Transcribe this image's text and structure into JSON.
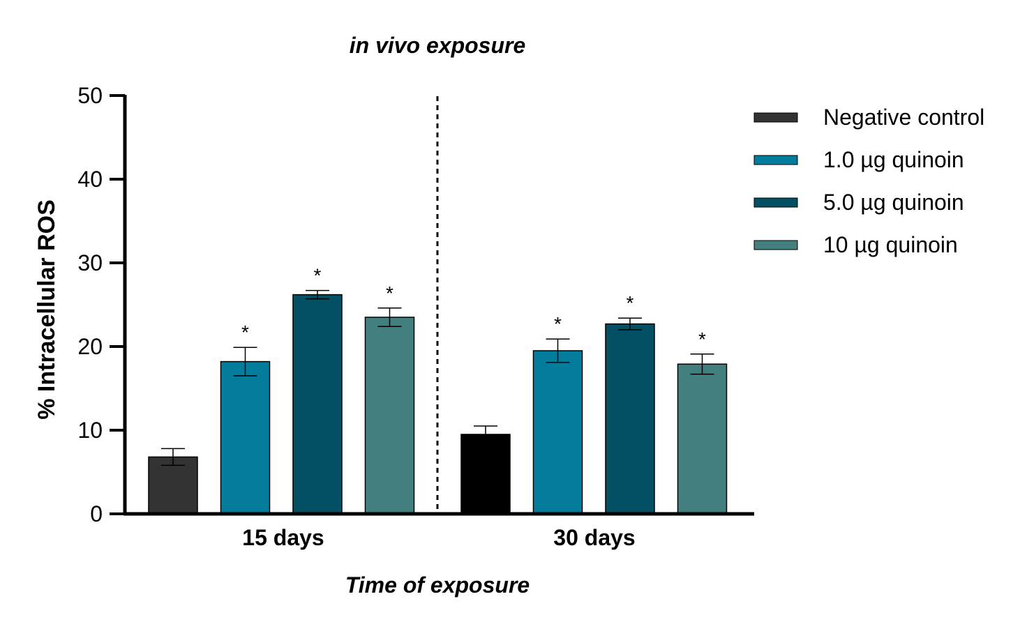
{
  "chart_data": {
    "type": "bar",
    "title": "in vivo exposure",
    "xlabel": "Time of exposure",
    "ylabel": "% Intracellular ROS",
    "ylim": [
      0,
      50
    ],
    "yticks": [
      0,
      10,
      20,
      30,
      40,
      50
    ],
    "categories": [
      "15 days",
      "30 days"
    ],
    "series": [
      {
        "name": "Negative control",
        "color": "#333333",
        "colors": [
          "#333333",
          "#000000"
        ],
        "values": [
          6.8,
          9.5
        ],
        "errors": [
          1.0,
          1.0
        ],
        "significant": [
          false,
          false
        ]
      },
      {
        "name": "1.0 µg quinoin",
        "color": "#047d9c",
        "values": [
          18.2,
          19.5
        ],
        "errors": [
          1.7,
          1.4
        ],
        "significant": [
          true,
          true
        ]
      },
      {
        "name": "5.0 µg quinoin",
        "color": "#034f63",
        "values": [
          26.2,
          22.7
        ],
        "errors": [
          0.5,
          0.7
        ],
        "significant": [
          true,
          true
        ]
      },
      {
        "name": "10 µg quinoin",
        "color": "#447f7f",
        "values": [
          23.5,
          17.9
        ],
        "errors": [
          1.1,
          1.2
        ],
        "significant": [
          true,
          true
        ]
      }
    ],
    "significance_marker": "*",
    "separator": "dashed vertical line between groups",
    "grid": false,
    "legend_position": "right"
  }
}
